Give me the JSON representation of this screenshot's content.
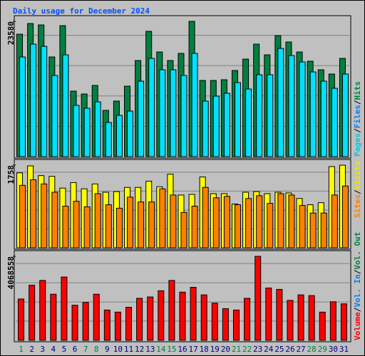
{
  "chart_data": [
    {
      "type": "bar",
      "title": "Daily usage for December 2024",
      "categories": [
        "1",
        "2",
        "3",
        "4",
        "5",
        "6",
        "7",
        "8",
        "9",
        "10",
        "11",
        "12",
        "13",
        "14",
        "15",
        "16",
        "17",
        "18",
        "19",
        "20",
        "21",
        "22",
        "23",
        "24",
        "25",
        "26",
        "27",
        "28",
        "29",
        "30",
        "31"
      ],
      "category_colors": [
        "#008040",
        "#000080",
        "#000080",
        "#000080",
        "#000080",
        "#000080",
        "#008040",
        "#008040",
        "#000080",
        "#000080",
        "#000080",
        "#000080",
        "#000080",
        "#008040",
        "#008040",
        "#000080",
        "#000080",
        "#000080",
        "#000080",
        "#000080",
        "#008040",
        "#008040",
        "#000080",
        "#000080",
        "#000080",
        "#000080",
        "#000080",
        "#008040",
        "#008040",
        "#000080",
        "#000080"
      ],
      "separator": "/",
      "legend": [
        {
          "name": "Pages",
          "color": "#00c8e8"
        },
        {
          "name": "Files",
          "color": "#0080ff"
        },
        {
          "name": "Hits",
          "color": "#008040"
        }
      ],
      "series": [
        {
          "name": "Hits",
          "color": "#008040",
          "values": [
            21346,
            23207,
            22959,
            17374,
            22835,
            11417,
            10921,
            12410,
            8067,
            9680,
            12286,
            16754,
            21842,
            18243,
            16754,
            17995,
            23580,
            13279,
            13279,
            13403,
            15016,
            17002,
            19608,
            17747,
            21098,
            19981,
            18243,
            16630,
            15141,
            14396,
            17126
          ]
        },
        {
          "name": "Files",
          "color": "#00e0ff",
          "values": [
            17374,
            19608,
            19236,
            14147,
            17746,
            8935,
            8439,
            9556,
            5957,
            7198,
            7942,
            13155,
            17126,
            15140,
            15140,
            14147,
            17995,
            9680,
            10549,
            11045,
            12906,
            11790,
            14272,
            14272,
            18863,
            17622,
            16505,
            14768,
            13155,
            11914,
            14396
          ]
        }
      ],
      "ylim": [
        0,
        23580
      ],
      "yticks": [
        23580
      ]
    },
    {
      "type": "bar",
      "legend": [
        {
          "name": "Sites",
          "color": "#ff8000"
        },
        {
          "name": "Visits",
          "color": "#e8e800"
        }
      ],
      "series": [
        {
          "name": "Visits",
          "color": "#ffff00",
          "values": [
            1595,
            1743,
            1536,
            1521,
            1270,
            1388,
            1255,
            1359,
            1182,
            1196,
            1285,
            1285,
            1418,
            1300,
            1566,
            1123,
            1137,
            1507,
            1152,
            1152,
            931,
            1182,
            1196,
            1152,
            1182,
            1167,
            1049,
            916,
            960,
            1728,
            1758
          ]
        },
        {
          "name": "Sites",
          "color": "#ff8000",
          "values": [
            1329,
            1447,
            1359,
            1182,
            886,
            990,
            871,
            1152,
            916,
            842,
            1078,
            975,
            975,
            1255,
            1123,
            753,
            886,
            1285,
            1063,
            1093,
            916,
            1049,
            1108,
            945,
            1152,
            1123,
            901,
            739,
            739,
            1123,
            1315
          ]
        }
      ],
      "ylim": [
        0,
        1758
      ],
      "yticks": [
        1758
      ]
    },
    {
      "type": "bar",
      "legend": [
        {
          "name": "Volume",
          "color": "#ff0000"
        },
        {
          "name": "Vol. In",
          "color": "#0080ff"
        },
        {
          "name": "Vol. Out",
          "color": "#008040"
        }
      ],
      "series": [
        {
          "name": "Volume",
          "color": "#ff0000",
          "values": [
            2000940,
            2667920,
            2901363,
            2234383,
            3068108,
            1700799,
            1834195,
            2234383,
            1467356,
            1367309,
            1600752,
            2034289,
            2100987,
            2401128,
            2901363,
            2334430,
            2567873,
            2201034,
            1800846,
            1534054,
            1467356,
            2034289,
            4068558,
            2534524,
            2467826,
            1934242,
            2201034,
            2167685,
            1367309,
            1867544,
            1767497
          ]
        }
      ],
      "ylim": [
        0,
        4068558
      ],
      "yticks": [
        4068558
      ]
    }
  ]
}
